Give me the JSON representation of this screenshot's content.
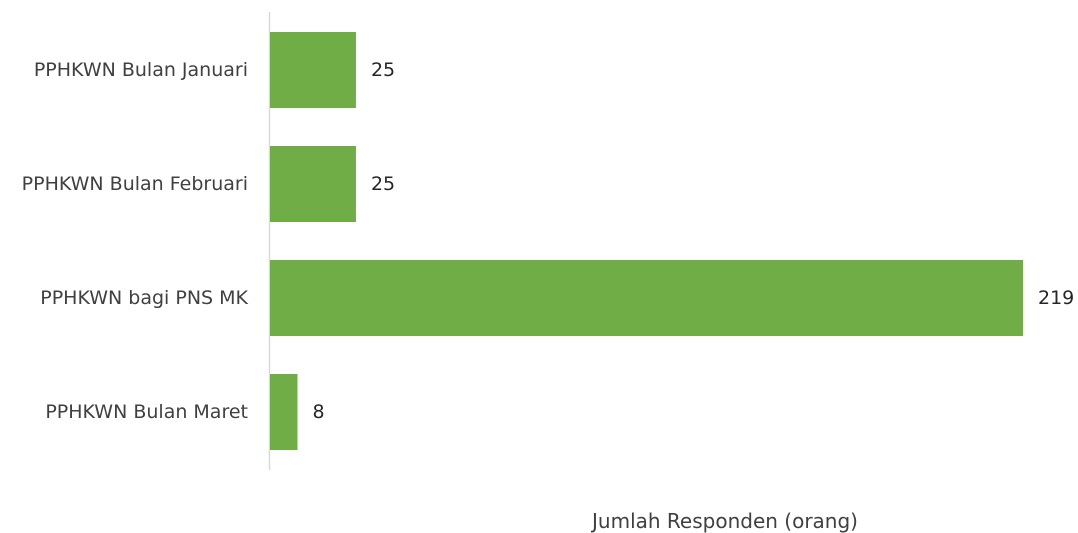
{
  "chart_data": {
    "type": "bar",
    "orientation": "horizontal",
    "categories": [
      "PPHKWN Bulan Januari",
      "PPHKWN Bulan Februari",
      "PPHKWN bagi PNS MK",
      "PPHKWN Bulan Maret"
    ],
    "values": [
      25,
      25,
      219,
      8
    ],
    "data_labels": [
      "25",
      "25",
      "219",
      "8"
    ],
    "title": "",
    "xlabel": "Jumlah Responden (orang)",
    "ylabel": "",
    "xlim": [
      0,
      219
    ],
    "grid": false,
    "legend": "none",
    "bar_color": "#70AD47",
    "axis_color": "#D9D9D9"
  }
}
